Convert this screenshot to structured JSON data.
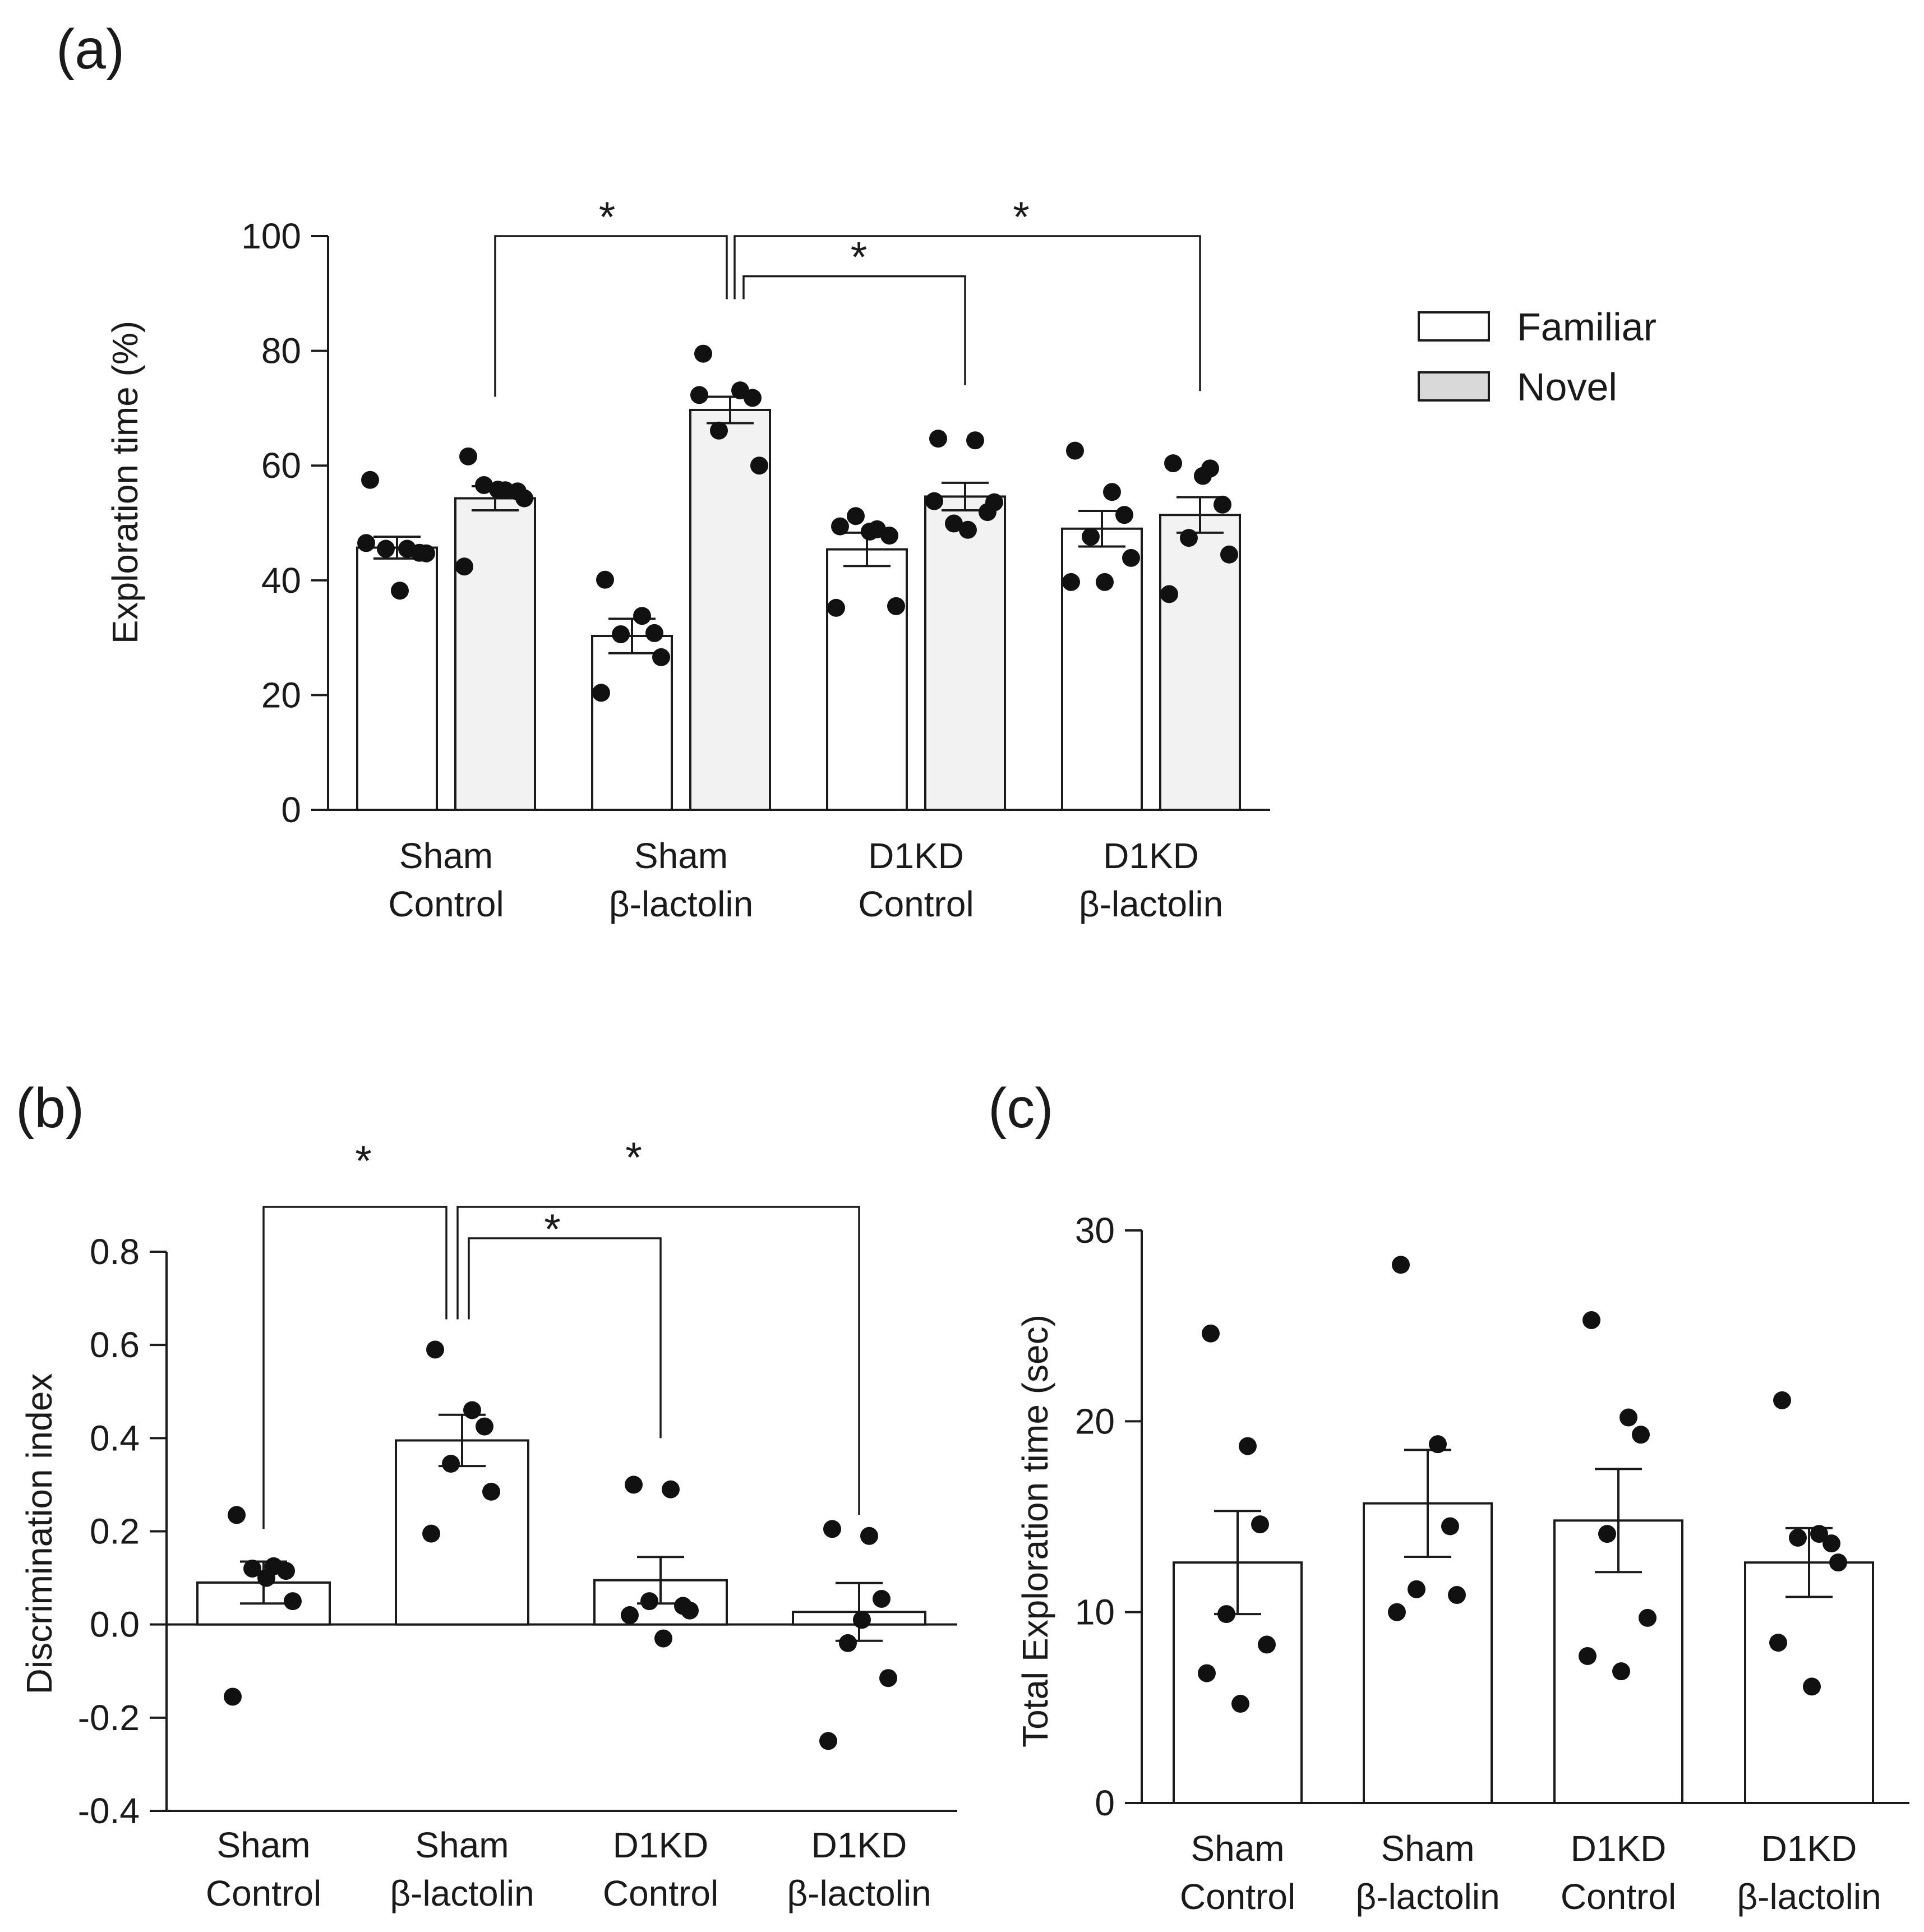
{
  "colors": {
    "familiar": "#ffffff",
    "novel": "#f2f2f2",
    "ink": "#1a1a1a",
    "dot": "#111111"
  },
  "chart_data": [
    {
      "panel": "(a)",
      "type": "bar",
      "ylabel": "Exploration time (%)",
      "ylim": [
        0,
        100
      ],
      "yticks": [
        0,
        20,
        40,
        60,
        80,
        100
      ],
      "categories": [
        [
          "Sham",
          "Control"
        ],
        [
          "Sham",
          "β-lactolin"
        ],
        [
          "D1KD",
          "Control"
        ],
        [
          "D1KD",
          "β-lactolin"
        ]
      ],
      "legend": [
        "Familiar",
        "Novel"
      ],
      "legend_position": "top-right",
      "series": [
        {
          "name": "Familiar",
          "values": [
            45.7,
            30.3,
            45.4,
            49.0
          ],
          "sem": [
            1.9,
            3.0,
            2.9,
            3.1
          ],
          "points": [
            [
              57.5,
              45.5,
              44.8,
              45.5,
              44.7,
              46.5,
              38.2
            ],
            [
              40.1,
              33.8,
              30.8,
              30.6,
              26.6,
              20.4
            ],
            [
              49.4,
              48.9,
              47.8,
              51.2,
              35.5,
              35.2,
              48.5
            ],
            [
              62.6,
              55.4,
              51.4,
              47.6,
              43.9,
              39.7,
              39.7
            ]
          ]
        },
        {
          "name": "Novel",
          "values": [
            54.3,
            69.7,
            54.6,
            51.4
          ],
          "sem": [
            2.1,
            2.3,
            2.4,
            3.1
          ],
          "points": [
            [
              61.6,
              55.7,
              55.5,
              56.6,
              54.3,
              42.4,
              55.8
            ],
            [
              79.5,
              73.1,
              71.8,
              66.1,
              60.0,
              72.3
            ],
            [
              64.7,
              64.4,
              51.9,
              49.9,
              53.6,
              53.8,
              48.8
            ],
            [
              60.4,
              59.5,
              53.2,
              47.4,
              44.5,
              37.6,
              58.2
            ]
          ]
        }
      ],
      "significance": [
        {
          "from": "Sham Control Novel",
          "to": "Sham β-lactolin Novel",
          "label": "*"
        },
        {
          "from": "Sham β-lactolin Novel",
          "to": "D1KD Control Novel",
          "label": "*"
        },
        {
          "from": "Sham β-lactolin Novel",
          "to": "D1KD β-lactolin Novel",
          "label": "*"
        }
      ]
    },
    {
      "panel": "(b)",
      "type": "bar",
      "ylabel": "Discrimination index",
      "ylim": [
        -0.4,
        0.8
      ],
      "yticks": [
        -0.4,
        -0.2,
        0.0,
        0.2,
        0.4,
        0.6,
        0.8
      ],
      "ytick_labels": [
        "-0.4",
        "-0.2",
        "0.0",
        "0.2",
        "0.4",
        "0.6",
        "0.8"
      ],
      "categories": [
        [
          "Sham",
          "Control"
        ],
        [
          "Sham",
          "β-lactolin"
        ],
        [
          "D1KD",
          "Control"
        ],
        [
          "D1KD",
          "β-lactolin"
        ]
      ],
      "values": [
        0.09,
        0.395,
        0.095,
        0.027
      ],
      "sem": [
        0.045,
        0.055,
        0.05,
        0.062
      ],
      "points": [
        [
          0.235,
          0.125,
          0.115,
          0.12,
          0.05,
          -0.155,
          0.1
        ],
        [
          0.59,
          0.46,
          0.425,
          0.345,
          0.285,
          0.195
        ],
        [
          0.3,
          0.29,
          0.04,
          0.05,
          0.03,
          0.02,
          -0.03
        ],
        [
          0.205,
          0.19,
          0.055,
          -0.04,
          -0.115,
          -0.25,
          0.01
        ]
      ],
      "significance": [
        {
          "from": "Sham Control",
          "to": "Sham β-lactolin",
          "label": "*"
        },
        {
          "from": "Sham β-lactolin",
          "to": "D1KD Control",
          "label": "*"
        },
        {
          "from": "Sham β-lactolin",
          "to": "D1KD β-lactolin",
          "label": "*"
        }
      ]
    },
    {
      "panel": "(c)",
      "type": "bar",
      "ylabel": "Total Exploration time (sec)",
      "ylim": [
        0,
        30
      ],
      "yticks": [
        0,
        10,
        20,
        30
      ],
      "categories": [
        [
          "Sham",
          "Control"
        ],
        [
          "Sham",
          "β-lactolin"
        ],
        [
          "D1KD",
          "Control"
        ],
        [
          "D1KD",
          "β-lactolin"
        ]
      ],
      "values": [
        12.6,
        15.7,
        14.8,
        12.6
      ],
      "sem": [
        2.7,
        2.8,
        2.7,
        1.8
      ],
      "points": [
        [
          24.6,
          18.7,
          14.6,
          9.9,
          8.3,
          6.8,
          5.2
        ],
        [
          28.2,
          18.8,
          14.5,
          11.2,
          10.9,
          10.0
        ],
        [
          25.3,
          20.2,
          19.3,
          14.1,
          9.7,
          7.7,
          6.9
        ],
        [
          21.1,
          14.1,
          13.6,
          13.9,
          12.6,
          8.4,
          6.1
        ]
      ]
    }
  ]
}
